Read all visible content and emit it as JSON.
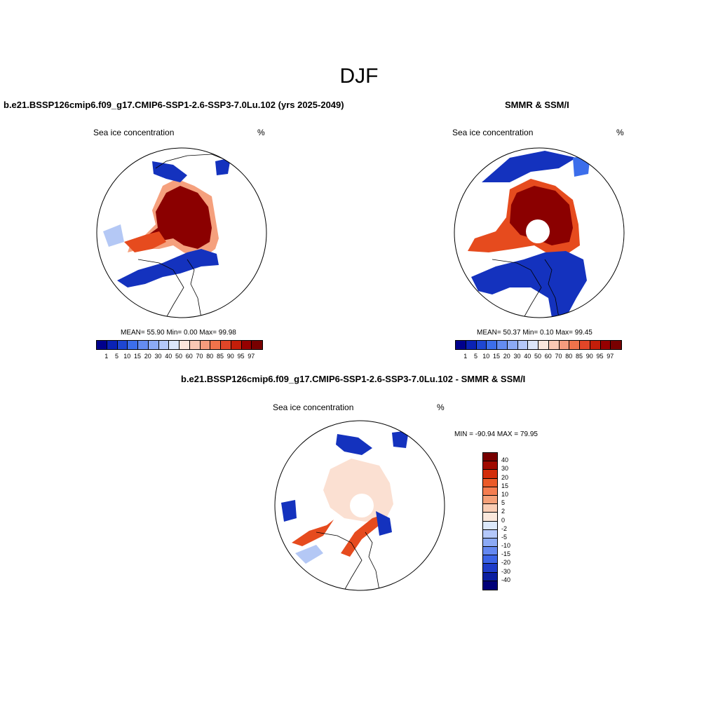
{
  "title": "DJF",
  "panels": [
    {
      "title": "b.e21.BSSP126cmip6.f09_g17.CMIP6-SSP1-2.6-SSP3-7.0Lu.102 (yrs 2025-2049)",
      "left_label": "Sea ice concentration",
      "right_label": "%",
      "stats": "MEAN=  55.90  Min=   0.00  Max=  99.98"
    },
    {
      "title": "SMMR & SSM/I",
      "left_label": "Sea ice concentration",
      "right_label": "%",
      "stats": "MEAN=  50.37  Min=   0.10  Max=  99.45"
    },
    {
      "title": "b.e21.BSSP126cmip6.f09_g17.CMIP6-SSP1-2.6-SSP3-7.0Lu.102 - SMMR & SSM/I",
      "left_label": "Sea ice concentration",
      "right_label": "%",
      "stats": "MIN = -90.94 MAX =  79.95"
    }
  ],
  "colorbar_abs": {
    "labels": [
      "1",
      "5",
      "10",
      "15",
      "20",
      "30",
      "40",
      "50",
      "60",
      "70",
      "80",
      "85",
      "90",
      "95",
      "97"
    ],
    "colors": [
      "#00008c",
      "#0a22b4",
      "#1e46d2",
      "#3c6eeb",
      "#648cf0",
      "#8caaf5",
      "#b4c8fa",
      "#dce6fa",
      "#fae6dc",
      "#fac8b4",
      "#f59b7d",
      "#f0734b",
      "#e14628",
      "#c31e0a",
      "#960000",
      "#780000"
    ]
  },
  "colorbar_diff": {
    "labels": [
      "40",
      "30",
      "20",
      "15",
      "10",
      "5",
      "2",
      "0",
      "-2",
      "-5",
      "-10",
      "-15",
      "-20",
      "-30",
      "-40"
    ],
    "colors": [
      "#780000",
      "#a00a00",
      "#d22d0a",
      "#eb5a28",
      "#f57d50",
      "#f5a078",
      "#facdb4",
      "#fbe8dc",
      "#dce8fa",
      "#b4c8fa",
      "#8caaf5",
      "#6488f0",
      "#3c64e6",
      "#1e3cc8",
      "#0a1ea0",
      "#000078"
    ]
  },
  "map_colors": {
    "high": "#8b0000",
    "mid": "#e64b1e",
    "edge": "#f5a07d",
    "low": "#1432be",
    "lowest": "#000a8c",
    "light_blue": "#b4c8f5",
    "pale_red": "#fbe0d2"
  }
}
